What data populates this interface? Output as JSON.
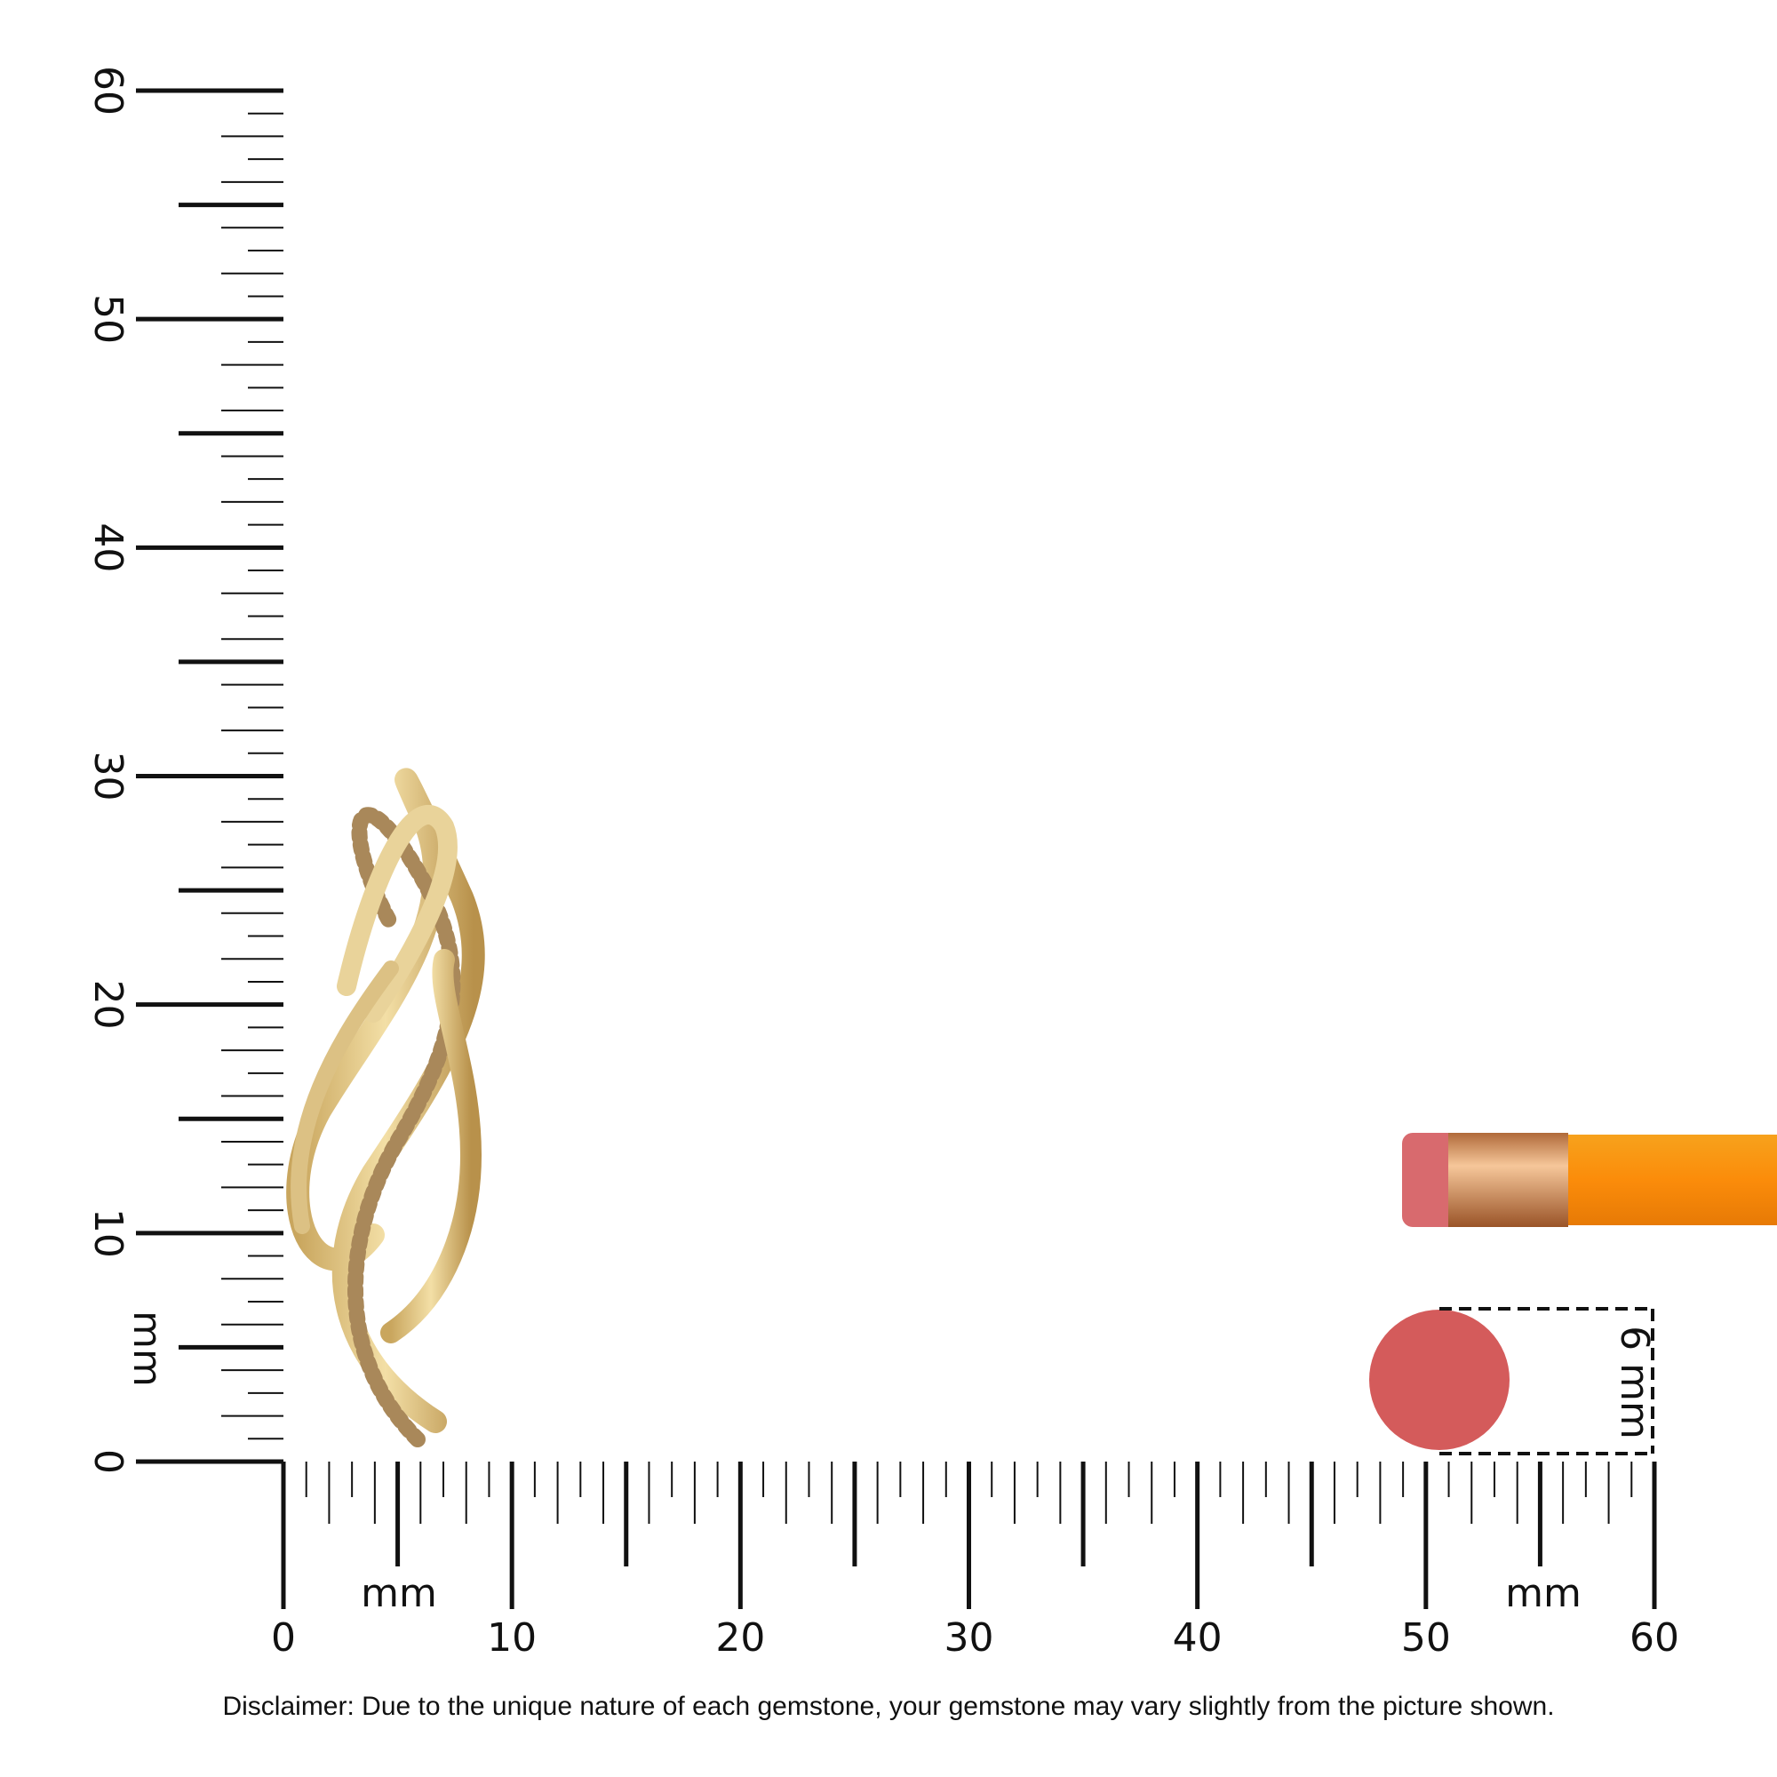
{
  "vertical_ruler": {
    "labels": [
      0,
      10,
      20,
      30,
      40,
      50,
      60
    ],
    "unit": "mm"
  },
  "horizontal_ruler": {
    "labels": [
      0,
      10,
      20,
      30,
      40,
      50,
      60
    ],
    "unit_left": "mm",
    "unit_right": "mm"
  },
  "coin": {
    "label": "6 mm"
  },
  "disclaimer": "Disclaimer: Due to the unique nature of each gemstone, your gemstone may vary slightly from the picture shown."
}
